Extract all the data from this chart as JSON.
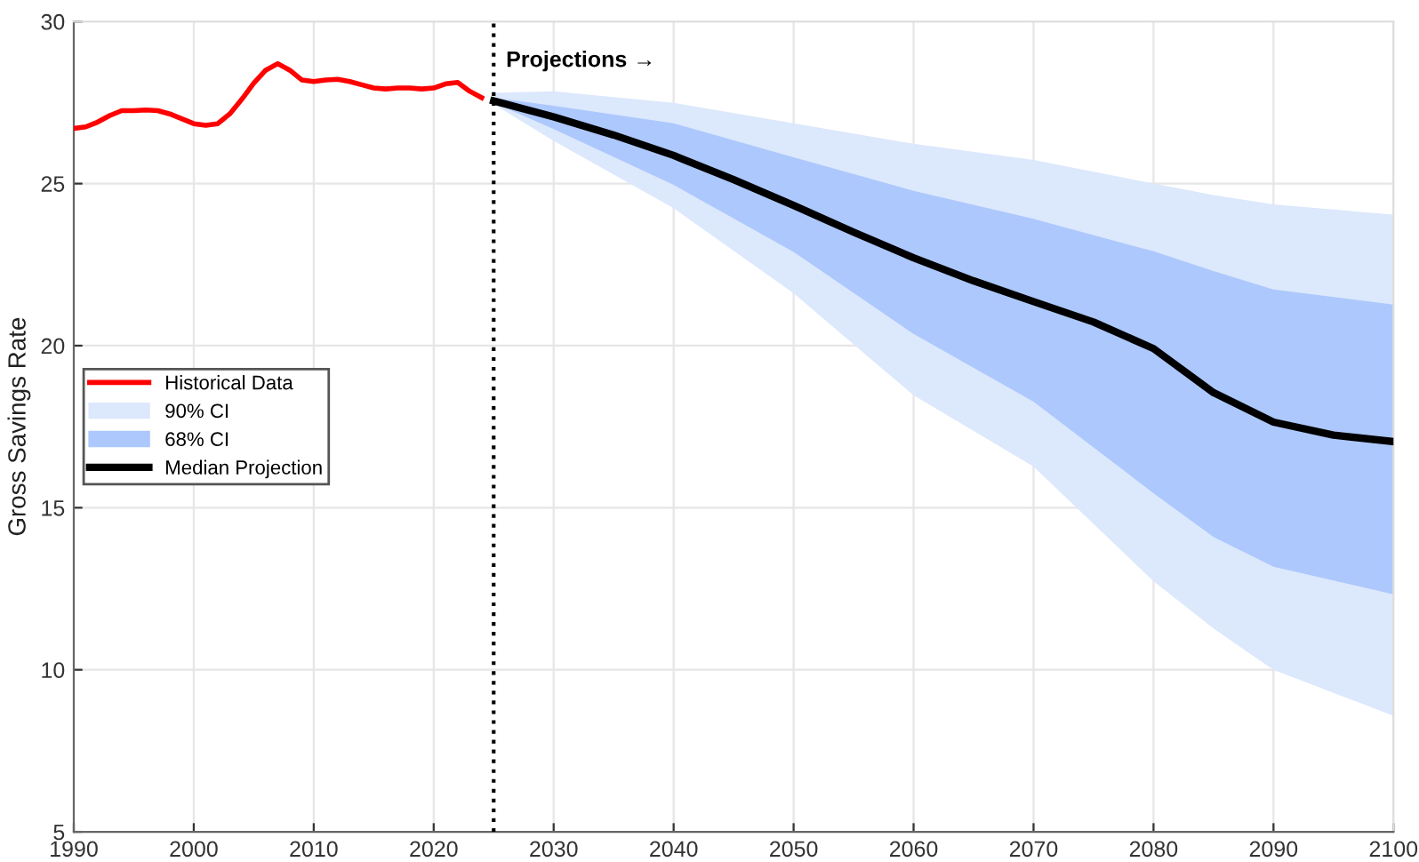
{
  "chart_data": {
    "type": "line",
    "ylabel": "Gross Savings Rate",
    "xlim": [
      1990,
      2100
    ],
    "ylim": [
      5,
      30
    ],
    "xticks": [
      1990,
      2000,
      2010,
      2020,
      2030,
      2040,
      2050,
      2060,
      2070,
      2080,
      2090,
      2100
    ],
    "yticks": [
      5,
      10,
      15,
      20,
      25,
      30
    ],
    "grid": true,
    "legend": "center left",
    "line_style": "solid",
    "marker": "none",
    "ref_lines": [
      {
        "axis": "x",
        "value": 2025,
        "color": "#000000",
        "line_style": "dotted"
      }
    ],
    "annotations": [
      "Projections →"
    ],
    "series": [
      {
        "name": "Historical Data",
        "color": "#ff0000",
        "x": [
          1990,
          1991,
          1992,
          1993,
          1994,
          1995,
          1996,
          1997,
          1998,
          1999,
          2000,
          2001,
          2002,
          2003,
          2004,
          2005,
          2006,
          2007,
          2008,
          2009,
          2010,
          2011,
          2012,
          2013,
          2014,
          2015,
          2016,
          2017,
          2018,
          2019,
          2020,
          2021,
          2022,
          2023,
          2024
        ],
        "values": [
          26.7,
          26.75,
          26.9,
          27.1,
          27.25,
          27.25,
          27.27,
          27.25,
          27.15,
          27.0,
          26.85,
          26.8,
          26.85,
          27.15,
          27.6,
          28.1,
          28.5,
          28.7,
          28.5,
          28.2,
          28.15,
          28.2,
          28.22,
          28.15,
          28.05,
          27.95,
          27.92,
          27.95,
          27.95,
          27.92,
          27.95,
          28.08,
          28.12,
          27.85,
          27.65
        ]
      },
      {
        "name": "90% CI",
        "type": "area",
        "color": "#dce8fc",
        "x": [
          2025,
          2030,
          2040,
          2050,
          2060,
          2070,
          2080,
          2085,
          2090,
          2100
        ],
        "values": [
          null,
          null,
          null,
          null,
          null,
          null,
          null,
          null,
          null,
          null
        ],
        "lower": [
          27.45,
          26.32,
          24.24,
          21.62,
          18.47,
          16.27,
          12.73,
          11.27,
          10.0,
          8.58
        ],
        "upper": [
          27.8,
          27.85,
          27.49,
          26.86,
          26.23,
          25.73,
          25.0,
          24.65,
          24.36,
          24.04
        ]
      },
      {
        "name": "68% CI",
        "type": "area",
        "color": "#adc8fc",
        "x": [
          2025,
          2030,
          2040,
          2050,
          2060,
          2070,
          2080,
          2085,
          2090,
          2100
        ],
        "values": [
          null,
          null,
          null,
          null,
          null,
          null,
          null,
          null,
          null,
          null
        ],
        "lower": [
          27.5,
          26.68,
          24.96,
          22.89,
          20.36,
          18.27,
          15.45,
          14.1,
          13.18,
          12.33
        ],
        "upper": [
          27.65,
          27.4,
          26.86,
          25.81,
          24.78,
          23.91,
          22.91,
          22.3,
          21.73,
          21.27
        ]
      },
      {
        "name": "Median Projection",
        "color": "#000000",
        "x": [
          2025,
          2030,
          2035,
          2040,
          2045,
          2050,
          2055,
          2060,
          2065,
          2070,
          2075,
          2080,
          2085,
          2090,
          2095,
          2100
        ],
        "values": [
          27.55,
          27.06,
          26.5,
          25.87,
          25.12,
          24.33,
          23.5,
          22.71,
          22.0,
          21.36,
          20.73,
          19.91,
          18.55,
          17.64,
          17.24,
          17.04
        ]
      }
    ]
  }
}
